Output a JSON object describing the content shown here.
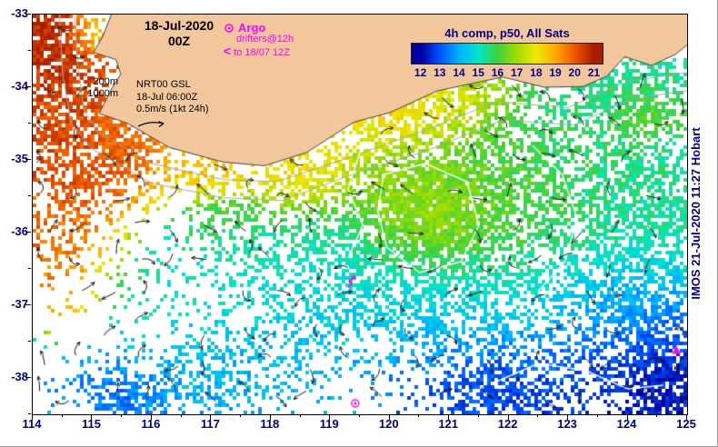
{
  "header": {
    "date_line1": "18-Jul-2020",
    "date_line2": "00Z"
  },
  "legend_argo": {
    "title": "Argo",
    "line1": "drifters@12h",
    "symbol": "<",
    "line2": "to 18/07 12Z"
  },
  "colorbar": {
    "title": "4h comp, p50, All Sats",
    "ticks": [
      12,
      13,
      14,
      15,
      16,
      17,
      18,
      19,
      20,
      21
    ],
    "colors": [
      "#0000a0",
      "#0055ff",
      "#00b4ff",
      "#00e6c8",
      "#3cd23c",
      "#a0dc00",
      "#f0e800",
      "#ffaa00",
      "#f05a00",
      "#aa1e00"
    ]
  },
  "legend_gsl": {
    "line1": "NRT00 GSL",
    "line2": "18-Jul 06:00Z",
    "line3": "0.5m/s (1kt 24h)"
  },
  "isobath_labels": {
    "l200": "200m",
    "l1000": "1000m"
  },
  "watermark": {
    "text": "IMOS 21-Jul-2020 11:27 Hobart"
  },
  "axes": {
    "x_ticks": [
      "114",
      "115",
      "116",
      "117",
      "118",
      "119",
      "120",
      "121",
      "122",
      "123",
      "124",
      "125"
    ],
    "y_ticks": [
      "-33",
      "-34",
      "-35",
      "-36",
      "-37",
      "-38"
    ]
  },
  "colors": {
    "land": "#f2c79c",
    "coast": "#444444",
    "label_navy": "#00008b",
    "magenta": "#ff00ff",
    "contour_gray": "#a8a8a8",
    "front_white": "#ffffff",
    "arrow": "#151515"
  },
  "chart_data": {
    "type": "heatmap",
    "title": "4h comp, p50, All Sats",
    "datetime": "18-Jul-2020 00Z",
    "xlim": [
      114,
      125
    ],
    "ylim": [
      -38.5,
      -33
    ],
    "colorbar_ticks": [
      12,
      13,
      14,
      15,
      16,
      17,
      18,
      19,
      20,
      21
    ],
    "coastline": [
      [
        115.32,
        -33.0
      ],
      [
        115.18,
        -33.3
      ],
      [
        115.02,
        -33.52
      ],
      [
        115.4,
        -33.62
      ],
      [
        115.48,
        -33.82
      ],
      [
        115.3,
        -34.06
      ],
      [
        115.12,
        -34.36
      ],
      [
        115.6,
        -34.5
      ],
      [
        116.3,
        -34.83
      ],
      [
        117.2,
        -35.03
      ],
      [
        117.9,
        -35.08
      ],
      [
        118.6,
        -34.9
      ],
      [
        119.4,
        -34.48
      ],
      [
        120.0,
        -34.35
      ],
      [
        120.8,
        -34.05
      ],
      [
        121.9,
        -33.86
      ],
      [
        122.6,
        -34.0
      ],
      [
        123.25,
        -33.99
      ],
      [
        123.65,
        -33.85
      ],
      [
        123.95,
        -33.58
      ],
      [
        124.4,
        -33.7
      ],
      [
        124.8,
        -33.55
      ],
      [
        125.0,
        -33.42
      ]
    ],
    "isobaths": [
      {
        "name": "200m",
        "points": [
          [
            114.7,
            -33.0
          ],
          [
            114.75,
            -33.6
          ],
          [
            114.85,
            -34.3
          ],
          [
            115.1,
            -34.62
          ],
          [
            116.0,
            -35.05
          ],
          [
            117.2,
            -35.27
          ],
          [
            118.1,
            -35.3
          ],
          [
            119.2,
            -35.0
          ],
          [
            120.5,
            -34.62
          ],
          [
            121.8,
            -34.2
          ],
          [
            123.0,
            -34.28
          ],
          [
            124.0,
            -33.92
          ],
          [
            125.0,
            -33.8
          ]
        ]
      },
      {
        "name": "1000m",
        "points": [
          [
            114.45,
            -33.0
          ],
          [
            114.5,
            -33.8
          ],
          [
            114.65,
            -34.5
          ],
          [
            115.0,
            -34.85
          ],
          [
            116.0,
            -35.32
          ],
          [
            117.2,
            -35.52
          ],
          [
            118.2,
            -35.56
          ],
          [
            119.3,
            -35.22
          ],
          [
            120.6,
            -34.88
          ],
          [
            121.9,
            -34.45
          ],
          [
            123.1,
            -34.52
          ],
          [
            124.1,
            -34.15
          ],
          [
            125.0,
            -34.05
          ]
        ]
      }
    ],
    "sst_regions": [
      {
        "lon": 114.55,
        "lat": -34.2,
        "rx": 0.85,
        "ry": 1.5,
        "t": 20.3,
        "d": 0.7
      },
      {
        "lon": 114.25,
        "lat": -33.35,
        "rx": 0.5,
        "ry": 0.55,
        "t": 21.0,
        "d": 0.85
      },
      {
        "lon": 114.95,
        "lat": -33.25,
        "rx": 0.3,
        "ry": 0.3,
        "t": 16.5,
        "d": 0.3
      },
      {
        "lon": 115.35,
        "lat": -35.0,
        "rx": 0.6,
        "ry": 0.6,
        "t": 20.2,
        "d": 0.6
      },
      {
        "lon": 115.7,
        "lat": -34.7,
        "rx": 0.5,
        "ry": 0.3,
        "t": 19.5,
        "d": 0.6
      },
      {
        "lon": 116.9,
        "lat": -35.2,
        "rx": 0.8,
        "ry": 0.3,
        "t": 19.0,
        "d": 0.5
      },
      {
        "lon": 118.6,
        "lat": -35.15,
        "rx": 0.8,
        "ry": 0.45,
        "t": 18.6,
        "d": 0.6
      },
      {
        "lon": 120.1,
        "lat": -34.35,
        "rx": 0.9,
        "ry": 0.45,
        "t": 18.8,
        "d": 0.8
      },
      {
        "lon": 121.3,
        "lat": -34.1,
        "rx": 0.7,
        "ry": 0.3,
        "t": 17.8,
        "d": 0.55
      },
      {
        "lon": 120.8,
        "lat": -35.6,
        "rx": 1.6,
        "ry": 1.05,
        "t": 16.6,
        "d": 0.8
      },
      {
        "lon": 120.6,
        "lat": -35.7,
        "rx": 0.75,
        "ry": 0.5,
        "t": 17.4,
        "d": 0.9
      },
      {
        "lon": 122.9,
        "lat": -35.3,
        "rx": 2.2,
        "ry": 1.3,
        "t": 15.7,
        "d": 0.55
      },
      {
        "lon": 123.9,
        "lat": -33.95,
        "rx": 1.3,
        "ry": 0.45,
        "t": 15.3,
        "d": 0.7
      },
      {
        "lon": 124.3,
        "lat": -34.35,
        "rx": 0.5,
        "ry": 0.35,
        "t": 16.8,
        "d": 0.55
      },
      {
        "lon": 118.6,
        "lat": -36.3,
        "rx": 1.4,
        "ry": 0.8,
        "t": 15.4,
        "d": 0.3
      },
      {
        "lon": 120.8,
        "lat": -37.0,
        "rx": 2.6,
        "ry": 0.8,
        "t": 14.0,
        "d": 0.5
      },
      {
        "lon": 116.8,
        "lat": -36.4,
        "rx": 1.8,
        "ry": 1.3,
        "t": 15.3,
        "d": 0.12
      },
      {
        "lon": 121.9,
        "lat": -38.2,
        "rx": 1.2,
        "ry": 0.6,
        "t": 12.8,
        "d": 0.75
      },
      {
        "lon": 124.6,
        "lat": -38.0,
        "rx": 1.0,
        "ry": 0.8,
        "t": 12.3,
        "d": 0.85
      },
      {
        "lon": 116.3,
        "lat": -38.2,
        "rx": 1.6,
        "ry": 0.55,
        "t": 13.8,
        "d": 0.35
      },
      {
        "lon": 115.55,
        "lat": -38.35,
        "rx": 0.6,
        "ry": 0.35,
        "t": 13.1,
        "d": 0.6
      },
      {
        "lon": 114.5,
        "lat": -35.9,
        "rx": 0.5,
        "ry": 0.8,
        "t": 19.8,
        "d": 0.25
      },
      {
        "lon": 119.4,
        "lat": -36.3,
        "rx": 0.8,
        "ry": 0.6,
        "t": 14.8,
        "d": 0.3
      },
      {
        "lon": 117.6,
        "lat": -37.9,
        "rx": 1.2,
        "ry": 0.6,
        "t": 14.2,
        "d": 0.3
      },
      {
        "lon": 117.3,
        "lat": -35.8,
        "rx": 0.6,
        "ry": 0.4,
        "t": 16.0,
        "d": 0.35
      },
      {
        "lon": 124.2,
        "lat": -37.0,
        "rx": 1.0,
        "ry": 0.7,
        "t": 13.6,
        "d": 0.6
      },
      {
        "lon": 124.4,
        "lat": -35.8,
        "rx": 0.9,
        "ry": 1.0,
        "t": 15.2,
        "d": 0.6
      }
    ],
    "fronts": [
      [
        [
          119.9,
          -35.2
        ],
        [
          120.6,
          -35.05
        ],
        [
          121.3,
          -35.3
        ],
        [
          121.5,
          -35.9
        ],
        [
          121.2,
          -36.4
        ],
        [
          120.5,
          -36.55
        ],
        [
          119.95,
          -36.2
        ],
        [
          119.8,
          -35.7
        ],
        [
          119.9,
          -35.2
        ]
      ],
      [
        [
          122.4,
          -34.8
        ],
        [
          122.9,
          -35.2
        ],
        [
          123.15,
          -35.8
        ],
        [
          122.95,
          -36.4
        ],
        [
          122.5,
          -36.8
        ]
      ],
      [
        [
          121.8,
          -38.05
        ],
        [
          122.5,
          -37.8
        ],
        [
          123.3,
          -37.9
        ],
        [
          124.0,
          -38.15
        ],
        [
          124.6,
          -38.1
        ]
      ],
      [
        [
          119.5,
          -34.9
        ],
        [
          119.3,
          -35.4
        ],
        [
          119.55,
          -35.9
        ],
        [
          119.3,
          -36.35
        ]
      ]
    ],
    "markers": [
      {
        "type": "drifter-track",
        "lon": 119.38,
        "lat": -36.68
      },
      {
        "type": "argo-float",
        "lon": 119.42,
        "lat": -38.35
      },
      {
        "type": "drifter-triangle",
        "lon": 124.82,
        "lat": -37.62
      }
    ]
  }
}
